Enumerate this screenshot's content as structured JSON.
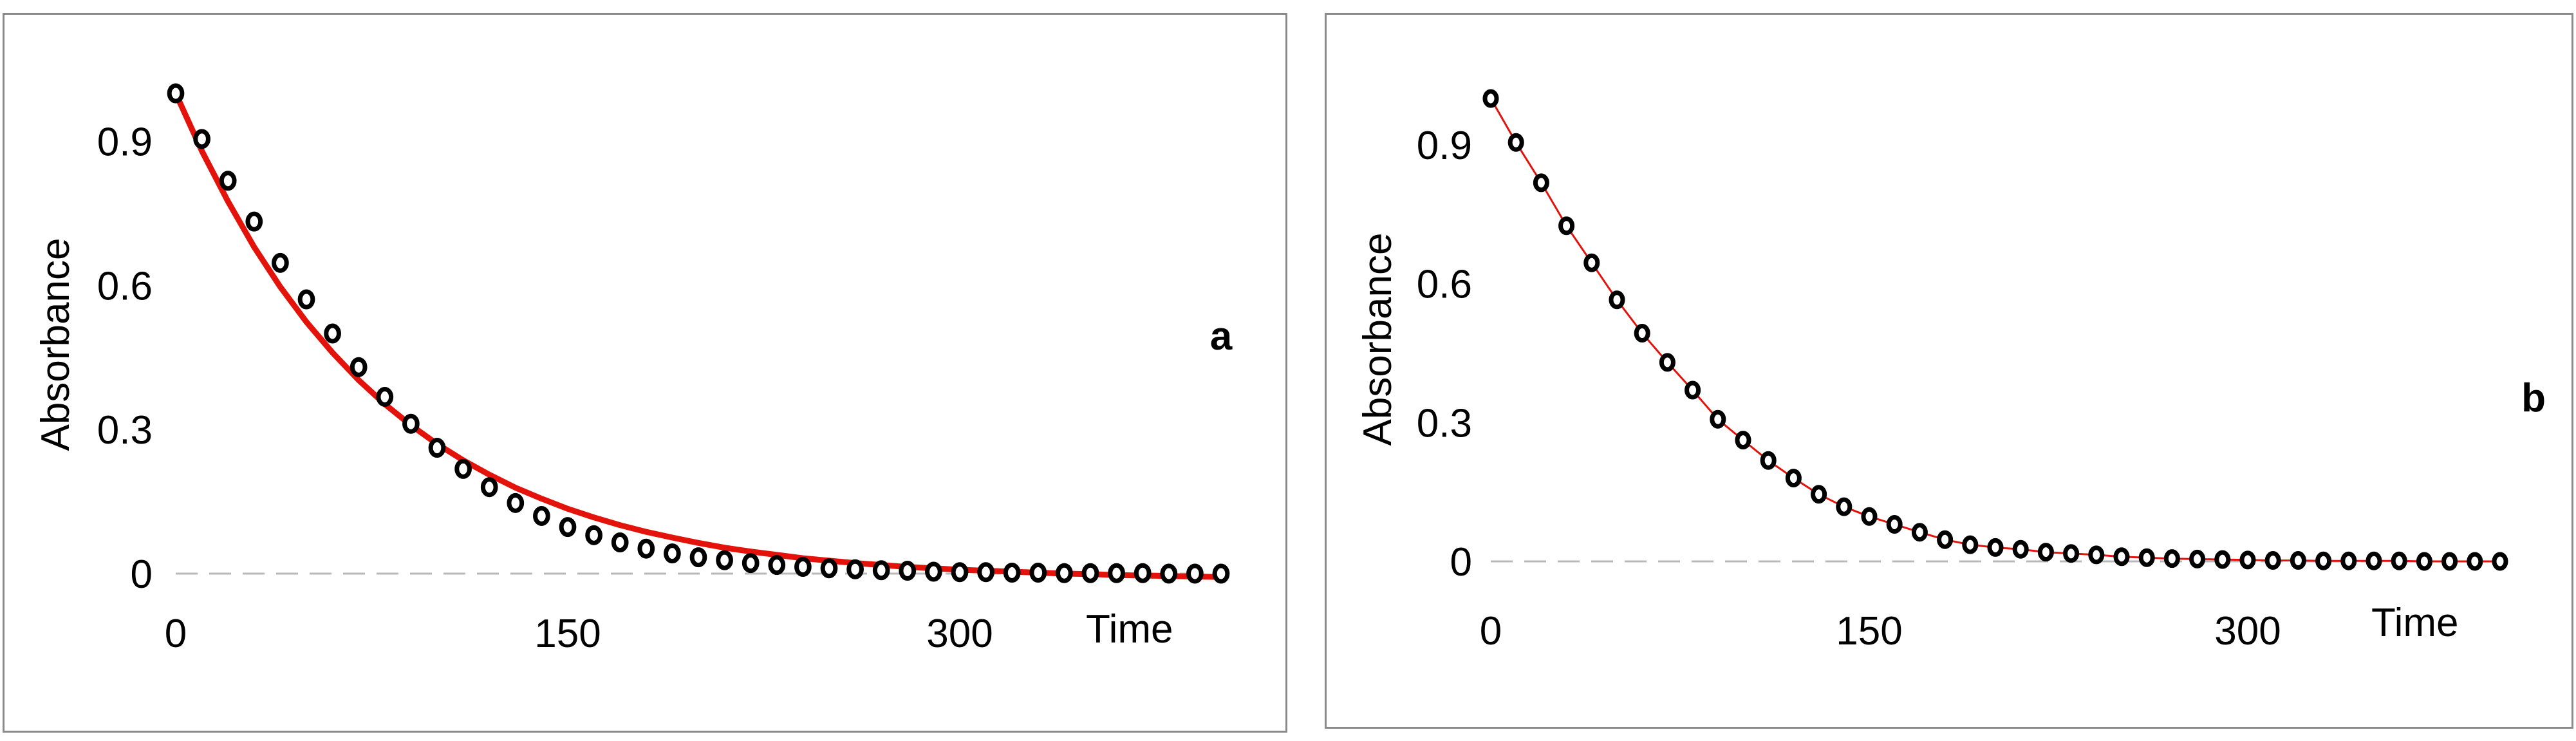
{
  "chart_data": [
    {
      "type": "scatter",
      "panel_label": "a",
      "title": "",
      "xlabel": "Time",
      "ylabel": "Absorbance",
      "xlim": [
        0,
        400
      ],
      "ylim": [
        0,
        1.0
      ],
      "x_ticks": [
        0,
        150,
        300
      ],
      "y_ticks": [
        0,
        0.3,
        0.6,
        0.9
      ],
      "x_tick_labels": [
        "0",
        "150",
        "300"
      ],
      "y_tick_labels": [
        "0",
        "0.3",
        "0.6",
        "0.9"
      ],
      "grid": false,
      "zero_line": "dashed",
      "series": [
        {
          "kind": "points",
          "marker": "open-circle",
          "color": "#000000",
          "x": [
            0,
            10,
            20,
            30,
            40,
            50,
            60,
            70,
            80,
            90,
            100,
            110,
            120,
            130,
            140,
            150,
            160,
            170,
            180,
            190,
            200,
            210,
            220,
            230,
            240,
            250,
            260,
            270,
            280,
            290,
            300,
            310,
            320,
            330,
            340,
            350,
            360,
            370,
            380,
            390,
            400
          ],
          "y": [
            1.0,
            0.905,
            0.818,
            0.733,
            0.647,
            0.571,
            0.5,
            0.43,
            0.368,
            0.312,
            0.262,
            0.218,
            0.18,
            0.147,
            0.12,
            0.097,
            0.08,
            0.065,
            0.052,
            0.042,
            0.034,
            0.028,
            0.022,
            0.018,
            0.014,
            0.011,
            0.009,
            0.007,
            0.006,
            0.004,
            0.003,
            0.003,
            0.002,
            0.002,
            0.001,
            0.001,
            0.001,
            0.001,
            0.0,
            0.0,
            0.0
          ]
        },
        {
          "kind": "curve",
          "color": "#e3120b",
          "x": [
            0,
            10,
            20,
            30,
            40,
            50,
            60,
            70,
            80,
            90,
            100,
            110,
            120,
            130,
            140,
            150,
            160,
            170,
            180,
            190,
            200,
            210,
            220,
            230,
            240,
            250,
            260,
            270,
            280,
            290,
            300,
            310,
            320,
            330,
            340,
            350,
            360,
            370,
            380,
            390,
            400
          ],
          "y": [
            1.0,
            0.88,
            0.775,
            0.68,
            0.597,
            0.524,
            0.46,
            0.403,
            0.353,
            0.309,
            0.27,
            0.236,
            0.206,
            0.179,
            0.156,
            0.135,
            0.117,
            0.101,
            0.087,
            0.075,
            0.064,
            0.054,
            0.046,
            0.039,
            0.032,
            0.027,
            0.022,
            0.018,
            0.014,
            0.011,
            0.008,
            0.006,
            0.004,
            0.002,
            0.0,
            -0.001,
            -0.003,
            -0.004,
            -0.005,
            -0.006,
            -0.007
          ]
        }
      ]
    },
    {
      "type": "scatter",
      "panel_label": "b",
      "title": "",
      "xlabel": "Time",
      "ylabel": "Absorbance",
      "xlim": [
        0,
        400
      ],
      "ylim": [
        0,
        1.0
      ],
      "x_ticks": [
        0,
        150,
        300
      ],
      "y_ticks": [
        0,
        0.3,
        0.6,
        0.9
      ],
      "x_tick_labels": [
        "0",
        "150",
        "300"
      ],
      "y_tick_labels": [
        "0",
        "0.3",
        "0.6",
        "0.9"
      ],
      "grid": false,
      "zero_line": "dashed",
      "series": [
        {
          "kind": "points",
          "marker": "open-circle",
          "color": "#000000",
          "x": [
            0,
            10,
            20,
            30,
            40,
            50,
            60,
            70,
            80,
            90,
            100,
            110,
            120,
            130,
            140,
            150,
            160,
            170,
            180,
            190,
            200,
            210,
            220,
            230,
            240,
            250,
            260,
            270,
            280,
            290,
            300,
            310,
            320,
            330,
            340,
            350,
            360,
            370,
            380,
            390,
            400
          ],
          "y": [
            1.0,
            0.905,
            0.818,
            0.725,
            0.645,
            0.565,
            0.493,
            0.43,
            0.37,
            0.307,
            0.262,
            0.218,
            0.18,
            0.145,
            0.118,
            0.097,
            0.08,
            0.063,
            0.047,
            0.036,
            0.03,
            0.026,
            0.02,
            0.017,
            0.014,
            0.01,
            0.008,
            0.006,
            0.005,
            0.004,
            0.003,
            0.002,
            0.002,
            0.001,
            0.001,
            0.001,
            0.001,
            0.0,
            0.0,
            0.0,
            0.0
          ]
        },
        {
          "kind": "curve",
          "color": "#e3120b",
          "x": [
            0,
            10,
            20,
            30,
            40,
            50,
            60,
            70,
            80,
            90,
            100,
            110,
            120,
            130,
            140,
            150,
            160,
            170,
            180,
            190,
            200,
            210,
            220,
            230,
            240,
            250,
            260,
            270,
            280,
            290,
            300,
            310,
            320,
            330,
            340,
            350,
            360,
            370,
            380,
            390,
            400
          ],
          "y": [
            1.0,
            0.905,
            0.818,
            0.725,
            0.645,
            0.565,
            0.493,
            0.43,
            0.37,
            0.307,
            0.262,
            0.218,
            0.18,
            0.145,
            0.118,
            0.097,
            0.08,
            0.063,
            0.047,
            0.036,
            0.03,
            0.026,
            0.02,
            0.017,
            0.014,
            0.01,
            0.008,
            0.006,
            0.005,
            0.004,
            0.003,
            0.002,
            0.002,
            0.001,
            0.001,
            0.001,
            0.001,
            0.0,
            0.0,
            0.0,
            0.0
          ]
        }
      ]
    }
  ]
}
